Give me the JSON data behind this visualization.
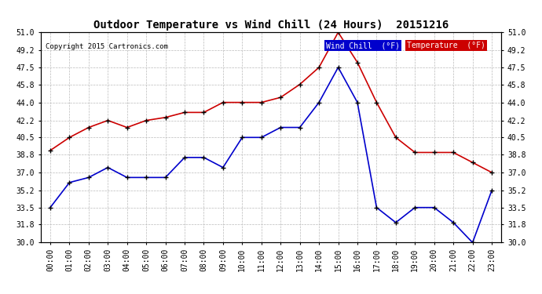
{
  "title": "Outdoor Temperature vs Wind Chill (24 Hours)  20151216",
  "copyright": "Copyright 2015 Cartronics.com",
  "ylim": [
    30.0,
    51.0
  ],
  "yticks": [
    30.0,
    31.8,
    33.5,
    35.2,
    37.0,
    38.8,
    40.5,
    42.2,
    44.0,
    45.8,
    47.5,
    49.2,
    51.0
  ],
  "hours": [
    "00:00",
    "01:00",
    "02:00",
    "03:00",
    "04:00",
    "05:00",
    "06:00",
    "07:00",
    "08:00",
    "09:00",
    "10:00",
    "11:00",
    "12:00",
    "13:00",
    "14:00",
    "15:00",
    "16:00",
    "17:00",
    "18:00",
    "19:00",
    "20:00",
    "21:00",
    "22:00",
    "23:00"
  ],
  "temperature": [
    39.2,
    40.5,
    41.5,
    42.2,
    41.5,
    42.2,
    42.5,
    43.0,
    43.0,
    44.0,
    44.0,
    44.0,
    44.5,
    45.8,
    47.5,
    51.0,
    48.0,
    44.0,
    40.5,
    39.0,
    39.0,
    39.0,
    38.0,
    37.0
  ],
  "wind_chill": [
    33.5,
    36.0,
    36.5,
    37.5,
    36.5,
    36.5,
    36.5,
    38.5,
    38.5,
    37.5,
    40.5,
    40.5,
    41.5,
    41.5,
    44.0,
    47.5,
    44.0,
    33.5,
    32.0,
    33.5,
    33.5,
    32.0,
    30.0,
    35.2
  ],
  "temp_color": "#cc0000",
  "wind_color": "#0000cc",
  "bg_color": "#ffffff",
  "grid_color": "#bbbbbb",
  "legend_wind_bg": "#0000cc",
  "legend_temp_bg": "#cc0000"
}
